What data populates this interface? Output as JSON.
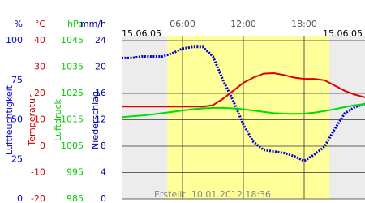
{
  "chart_data": {
    "type": "line",
    "xlim": [
      0,
      24
    ],
    "xticks": [
      {
        "value": 6,
        "label": "06:00"
      },
      {
        "value": 12,
        "label": "12:00"
      },
      {
        "value": 18,
        "label": "18:00"
      }
    ],
    "date_start": "15.06.05",
    "date_end": "15.06.05",
    "daylight": [
      4.5,
      20.5
    ],
    "grid": true,
    "footer": "Erstellt: 10.01.2012 18:36",
    "axes": [
      {
        "unit": "%",
        "label": "Luftfeuchtigkeit",
        "color": "#0000cc",
        "ylim": [
          0,
          100
        ],
        "yticks": [
          0,
          25,
          50,
          75,
          100
        ]
      },
      {
        "unit": "°C",
        "label": "Temperatur",
        "color": "#cc0000",
        "ylim": [
          -20,
          40
        ],
        "yticks": [
          -20,
          -10,
          0,
          10,
          20,
          30,
          40
        ]
      },
      {
        "unit": "hPa",
        "label": "Luftdruck",
        "color": "#00cc00",
        "ylim": [
          985,
          1045
        ],
        "yticks": [
          985,
          995,
          1005,
          1015,
          1025,
          1035,
          1045
        ]
      },
      {
        "unit": "mm/h",
        "label": "Niederschlag",
        "color": "#000099",
        "ylim": [
          0,
          24
        ],
        "yticks": [
          0,
          4,
          8,
          12,
          16,
          20,
          24
        ]
      }
    ],
    "x": [
      0,
      1,
      2,
      3,
      4,
      5,
      6,
      7,
      8,
      9,
      10,
      11,
      12,
      13,
      14,
      15,
      16,
      17,
      18,
      19,
      20,
      21,
      22,
      23,
      24
    ],
    "series": [
      {
        "axis": 0,
        "color": "#0000cc",
        "values": [
          89,
          89,
          90,
          90,
          90,
          92,
          95,
          96,
          96,
          90,
          75,
          62,
          47,
          36,
          31,
          30,
          29,
          27,
          24,
          28,
          33,
          44,
          54,
          58,
          60
        ]
      },
      {
        "axis": 1,
        "color": "#dd0000",
        "values": [
          15,
          15,
          15,
          15,
          15,
          15,
          15,
          15,
          15,
          15.5,
          18,
          21,
          24,
          26,
          27.5,
          27.7,
          27,
          26,
          25.5,
          25.5,
          25,
          23,
          21,
          19.5,
          18.5
        ]
      },
      {
        "axis": 2,
        "color": "#00dd00",
        "values": [
          1016,
          1016.3,
          1016.6,
          1017,
          1017.5,
          1018,
          1018.5,
          1019,
          1019.3,
          1019.5,
          1019.5,
          1019.3,
          1019,
          1018.5,
          1018,
          1017.5,
          1017.3,
          1017.2,
          1017.3,
          1017.7,
          1018.3,
          1019,
          1019.8,
          1020.5,
          1021
        ]
      }
    ]
  }
}
